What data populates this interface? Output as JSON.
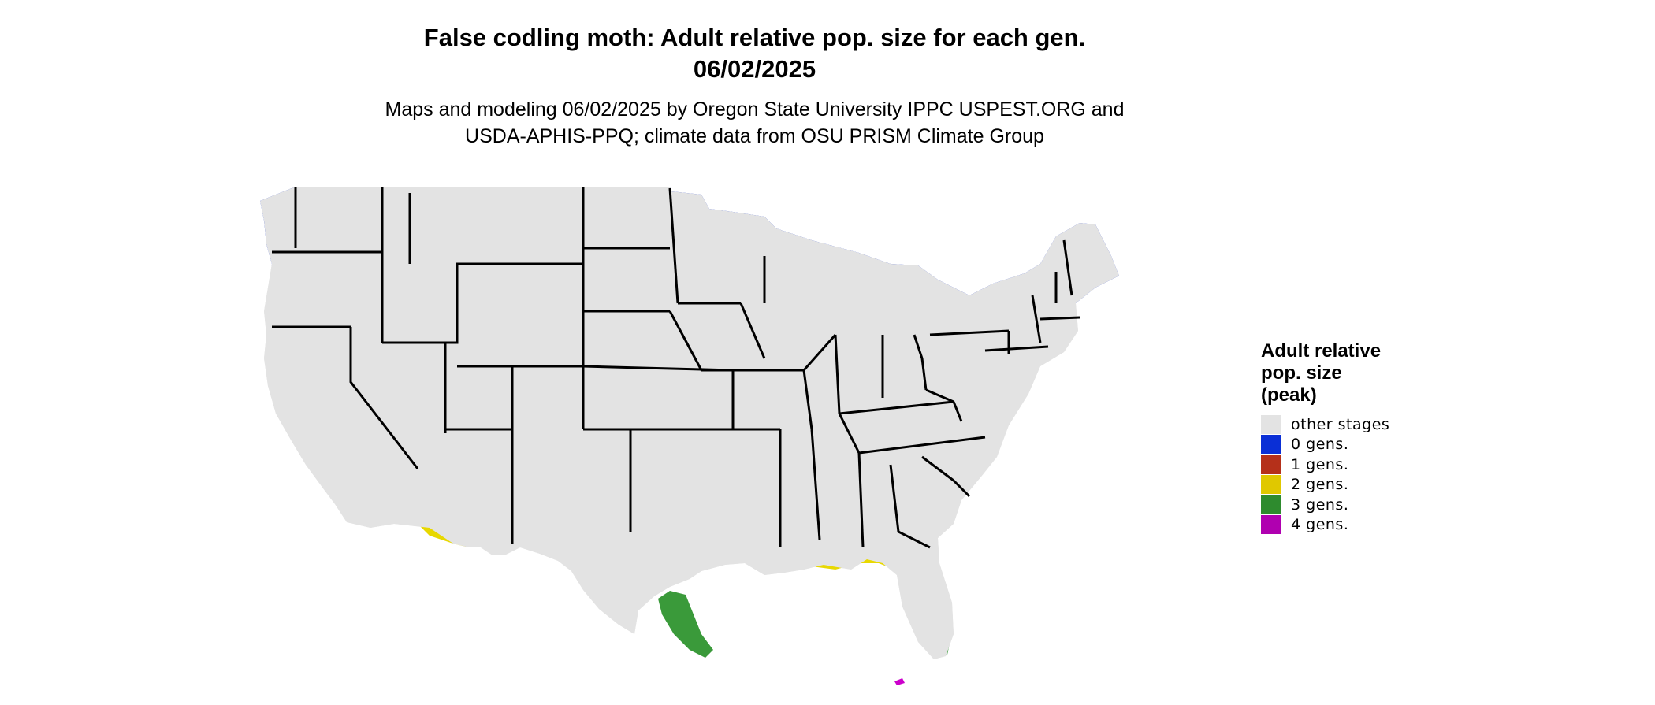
{
  "title": {
    "line1": "False codling moth: Adult relative pop. size for each gen.",
    "line2": "06/02/2025"
  },
  "subtitle": {
    "line1": "Maps and modeling 06/02/2025 by Oregon State University IPPC USPEST.ORG and",
    "line2": "USDA-APHIS-PPQ; climate data from OSU PRISM Climate Group"
  },
  "legend": {
    "title_lines": [
      "Adult relative",
      "pop. size",
      "(peak)"
    ],
    "items": [
      {
        "label": "other stages",
        "color": "#e3e3e3"
      },
      {
        "label": "0 gens.",
        "color": "#0a2fd6"
      },
      {
        "label": "1 gens.",
        "color": "#b5301a"
      },
      {
        "label": "2 gens.",
        "color": "#e0c800"
      },
      {
        "label": "3 gens.",
        "color": "#2e8b2e"
      },
      {
        "label": "4 gens.",
        "color": "#b000b0"
      }
    ]
  },
  "map": {
    "region": "contiguous-united-states",
    "colors": {
      "other": "#e3e3e3",
      "gen0_dark": "#0000cc",
      "gen0_mid": "#0a3ee6",
      "gen0_light": "#00a8f0",
      "gen1": "#c9361c",
      "gen1_bright": "#ee4a10",
      "gen2": "#e8d800",
      "gen3": "#3a9a3a",
      "gen4": "#cc00cc",
      "border": "#000000"
    }
  }
}
